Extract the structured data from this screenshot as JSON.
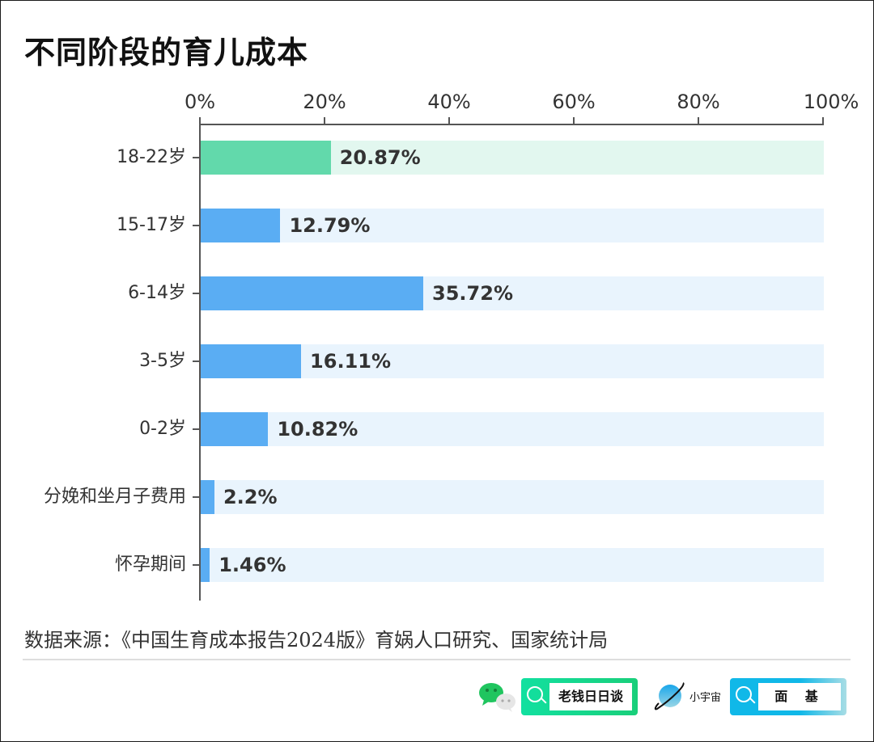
{
  "title": "不同阶段的育儿成本",
  "axis": {
    "ticks": [
      "0%",
      "20%",
      "40%",
      "60%",
      "80%",
      "100%"
    ]
  },
  "colors": {
    "highlight_bar": "#62d9ab",
    "highlight_track": "#e2f7ef",
    "bar": "#5aadf3",
    "track": "#e9f4fd",
    "axis": "#555555",
    "text": "#333333"
  },
  "rows": [
    {
      "label": "18-22岁",
      "value": 20.87,
      "value_label": "20.87%",
      "highlight": true
    },
    {
      "label": "15-17岁",
      "value": 12.79,
      "value_label": "12.79%",
      "highlight": false
    },
    {
      "label": "6-14岁",
      "value": 35.72,
      "value_label": "35.72%",
      "highlight": false
    },
    {
      "label": "3-5岁",
      "value": 16.11,
      "value_label": "16.11%",
      "highlight": false
    },
    {
      "label": "0-2岁",
      "value": 10.82,
      "value_label": "10.82%",
      "highlight": false
    },
    {
      "label": "分娩和坐月子费用",
      "value": 2.2,
      "value_label": "2.2%",
      "highlight": false
    },
    {
      "label": "怀孕期间",
      "value": 1.46,
      "value_label": "1.46%",
      "highlight": false
    }
  ],
  "source": "数据来源：《中国生育成本报告2024版》育娲人口研究、国家统计局",
  "footer": {
    "wechat_account": "老钱日日谈",
    "planet_label": "小宇宙",
    "planet_account": "面 基"
  },
  "chart_data": {
    "type": "bar",
    "orientation": "horizontal",
    "title": "不同阶段的育儿成本",
    "categories": [
      "18-22岁",
      "15-17岁",
      "6-14岁",
      "3-5岁",
      "0-2岁",
      "分娩和坐月子费用",
      "怀孕期间"
    ],
    "values": [
      20.87,
      12.79,
      35.72,
      16.11,
      10.82,
      2.2,
      1.46
    ],
    "data_labels": [
      "20.87%",
      "12.79%",
      "35.72%",
      "16.11%",
      "10.82%",
      "2.2%",
      "1.46%"
    ],
    "xlabel": "",
    "ylabel": "",
    "xlim": [
      0,
      100
    ],
    "x_ticks": [
      "0%",
      "20%",
      "40%",
      "60%",
      "80%",
      "100%"
    ],
    "axis_position": "top",
    "grid": false,
    "legend": null,
    "annotations": [
      "数据来源：《中国生育成本报告2024版》育娲人口研究、国家统计局"
    ]
  }
}
